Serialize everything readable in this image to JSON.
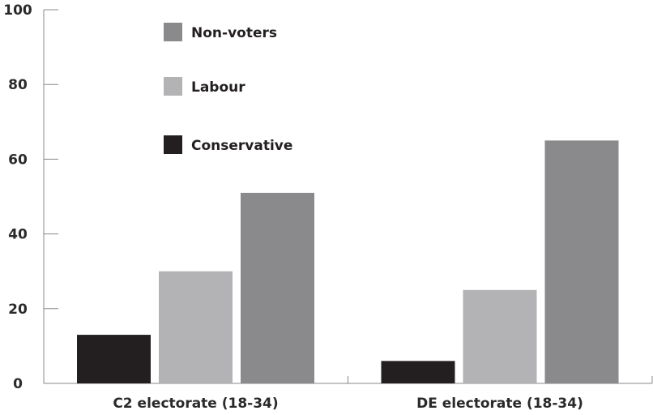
{
  "chart_data": {
    "type": "bar",
    "title": "",
    "xlabel": "",
    "ylabel": "",
    "categories": [
      "C2 electorate (18-34)",
      "DE electorate (18-34)"
    ],
    "series": [
      {
        "name": "Conservative",
        "values": [
          13,
          6
        ],
        "color": "#231f20"
      },
      {
        "name": "Labour",
        "values": [
          30,
          25
        ],
        "color": "#b3b3b5"
      },
      {
        "name": "Non-voters",
        "values": [
          51,
          65
        ],
        "color": "#8a8a8d"
      }
    ],
    "ylim": [
      0,
      100
    ],
    "yticks": [
      0,
      20,
      40,
      60,
      80,
      100
    ],
    "grid": false,
    "legend": {
      "position": "top-left",
      "order": [
        "Non-voters",
        "Labour",
        "Conservative"
      ]
    }
  }
}
